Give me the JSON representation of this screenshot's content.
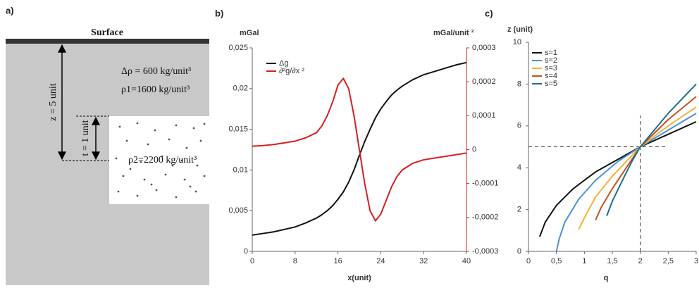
{
  "diagram": {
    "panel_label": "a)",
    "surface": "Surface",
    "delta_rho": "Δρ = 600 kg/unit³",
    "rho1": "ρ1=1600 kg/unit³",
    "rho2": "ρ2=2200 kg/unit³",
    "z_label": "z = 5 unit",
    "t_label": "t = 1 unit"
  },
  "chart_data": [
    {
      "type": "line",
      "panel_label": "b)",
      "y_label": "mGal",
      "y2_label": "mGal/unit ²",
      "x_label": "x(unit)",
      "legend": "upper left",
      "x": [
        0,
        2,
        4,
        6,
        8,
        10,
        12,
        13,
        14,
        15,
        16,
        17,
        18,
        19,
        20,
        21,
        22,
        23,
        24,
        25,
        26,
        27,
        28,
        30,
        32,
        34,
        36,
        38,
        40
      ],
      "xlim": [
        0,
        40
      ],
      "xticks": [
        0,
        8,
        16,
        24,
        32,
        40
      ],
      "ylim": [
        0,
        0.025
      ],
      "yticks": [
        0,
        {
          "value": 0.005,
          "label": "0,005"
        },
        {
          "value": 0.01,
          "label": "0,01"
        },
        {
          "value": 0.015,
          "label": "0,015"
        },
        {
          "value": 0.02,
          "label": "0,02"
        },
        {
          "value": 0.025,
          "label": "0,025"
        }
      ],
      "y2lim": [
        -0.0003,
        0.0003
      ],
      "y2ticks": [
        {
          "value": -0.0003,
          "label": "-0,0003"
        },
        {
          "value": -0.0002,
          "label": "-0,0002"
        },
        {
          "value": -0.0001,
          "label": "-0,0001"
        },
        0,
        {
          "value": 0.0001,
          "label": "0,0001"
        },
        {
          "value": 0.0002,
          "label": "0,0002"
        },
        {
          "value": 0.0003,
          "label": "0,0003"
        }
      ],
      "y2color": "#d42020",
      "series": [
        {
          "name": "Δg",
          "color": "#111111",
          "values": [
            0.002,
            0.0022,
            0.0024,
            0.0027,
            0.003,
            0.0035,
            0.0041,
            0.0045,
            0.005,
            0.0056,
            0.0064,
            0.0073,
            0.0085,
            0.01,
            0.0118,
            0.0135,
            0.015,
            0.0164,
            0.0175,
            0.0184,
            0.0192,
            0.0198,
            0.0203,
            0.0211,
            0.0217,
            0.0221,
            0.0225,
            0.0229,
            0.0232
          ]
        },
        {
          "name": "∂²g/∂x ²",
          "color": "#d42020",
          "axis": "y2",
          "values": [
            1e-05,
            1.2e-05,
            1.5e-05,
            2e-05,
            2.5e-05,
            3.5e-05,
            5e-05,
            7e-05,
            0.0001,
            0.00014,
            0.00019,
            0.00021,
            0.00018,
            0.0001,
            0,
            -0.0001,
            -0.00018,
            -0.00021,
            -0.00019,
            -0.00015,
            -0.00011,
            -8e-05,
            -6e-05,
            -4e-05,
            -3e-05,
            -2.5e-05,
            -2e-05,
            -1.5e-05,
            -1e-05
          ]
        }
      ]
    },
    {
      "type": "line",
      "panel_label": "c)",
      "y_label": "z (unit)",
      "x_label": "q",
      "legend": "upper left",
      "xlim": [
        0,
        3
      ],
      "xticks": [
        0,
        {
          "value": 0.5,
          "label": "0,5"
        },
        1,
        {
          "value": 1.5,
          "label": "1,5"
        },
        2,
        {
          "value": 2.5,
          "label": "2,5"
        },
        3
      ],
      "ylim": [
        0,
        10
      ],
      "yticks": [
        0,
        2,
        4,
        6,
        8,
        10
      ],
      "vline": 2,
      "hline": 5,
      "series": [
        {
          "name": "s=1",
          "color": "#111111",
          "x": [
            0.2,
            0.3,
            0.5,
            0.8,
            1.2,
            1.6,
            2,
            2.5,
            3
          ],
          "values": [
            0.7,
            1.4,
            2.2,
            3.0,
            3.8,
            4.4,
            5,
            5.6,
            6.2
          ]
        },
        {
          "name": "s=2",
          "color": "#4a90d9",
          "x": [
            0.5,
            0.55,
            0.65,
            0.9,
            1.2,
            1.6,
            2,
            2.5,
            3
          ],
          "values": [
            0,
            0.6,
            1.4,
            2.5,
            3.4,
            4.3,
            5,
            5.8,
            6.6
          ]
        },
        {
          "name": "s=3",
          "color": "#f5b13a",
          "x": [
            0.9,
            1.0,
            1.2,
            1.5,
            1.75,
            2,
            2.5,
            3
          ],
          "values": [
            1.05,
            1.6,
            2.6,
            3.6,
            4.3,
            5,
            6,
            6.9
          ]
        },
        {
          "name": "s=4",
          "color": "#c8501e",
          "x": [
            1.2,
            1.3,
            1.5,
            1.75,
            2,
            2.5,
            3
          ],
          "values": [
            1.5,
            2.1,
            3.0,
            4.0,
            5,
            6.3,
            7.4
          ]
        },
        {
          "name": "s=5",
          "color": "#1e6e8a",
          "x": [
            1.4,
            1.5,
            1.7,
            1.85,
            2,
            2.5,
            3
          ],
          "values": [
            1.7,
            2.4,
            3.5,
            4.3,
            5,
            6.6,
            8
          ]
        }
      ]
    }
  ]
}
